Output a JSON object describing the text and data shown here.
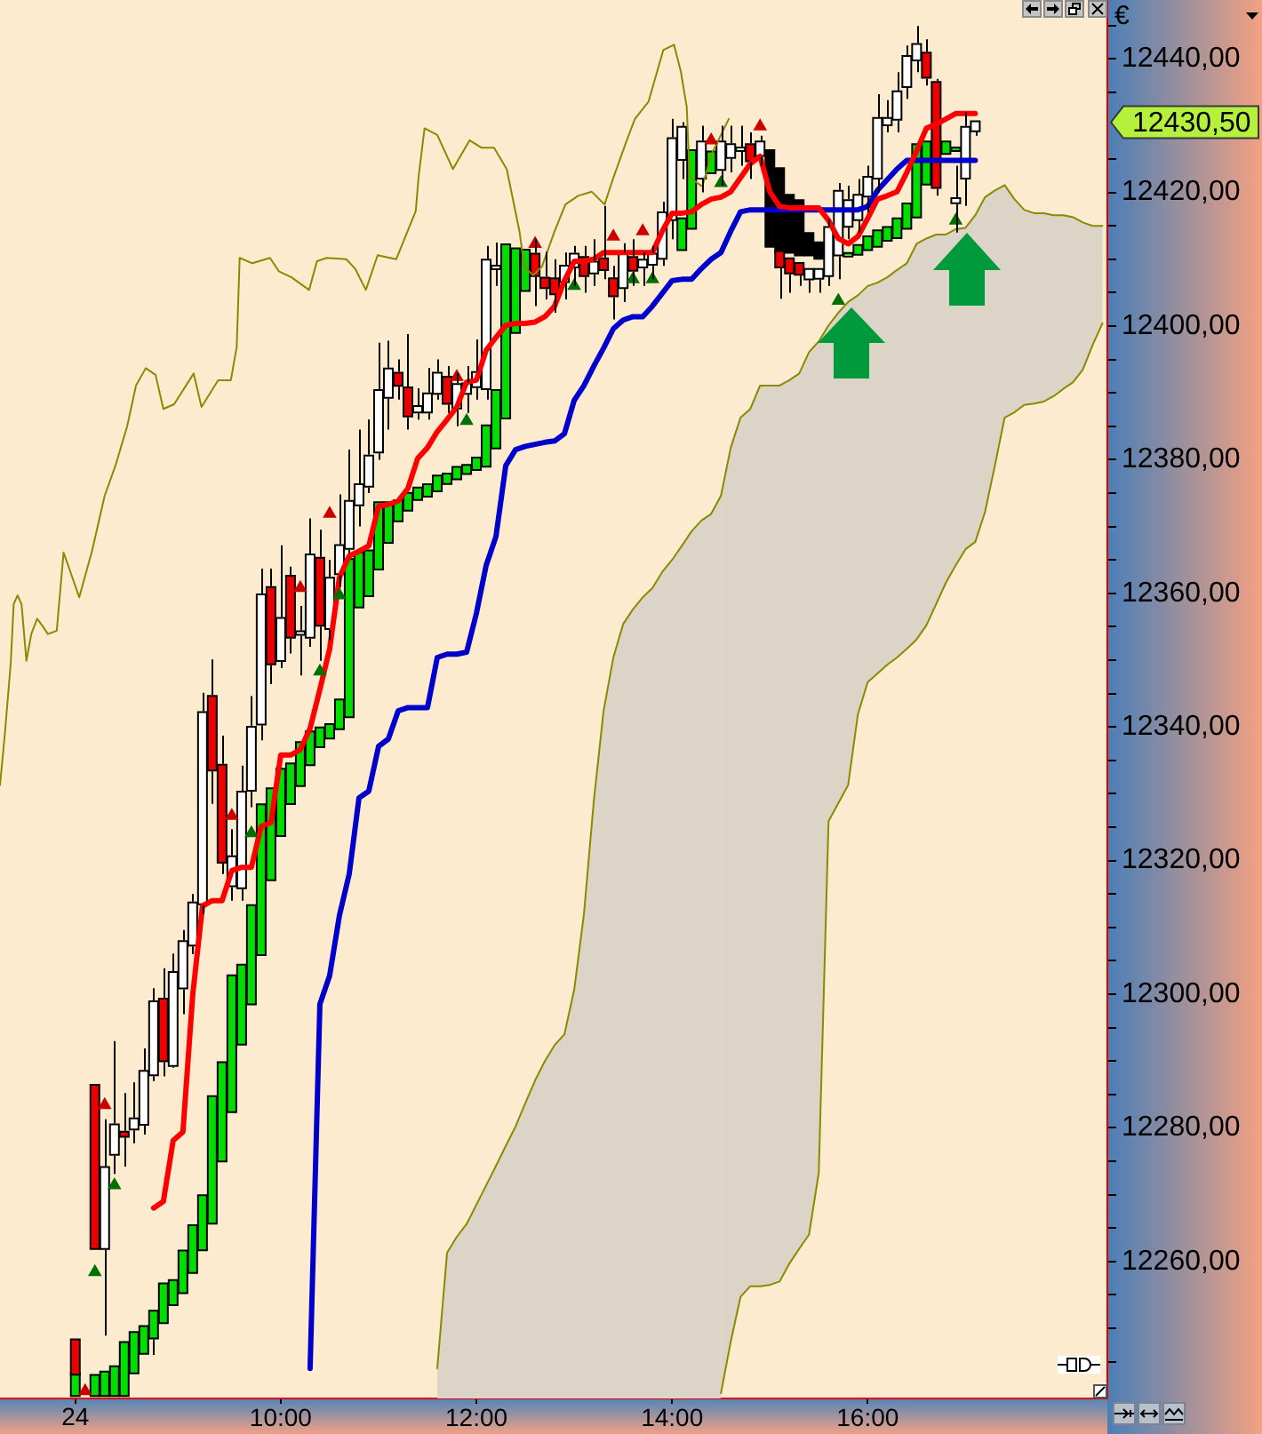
{
  "chart_data": {
    "type": "candlestick",
    "ylabel": "€",
    "x": [
      7.9,
      8,
      8.1,
      8.2,
      8.3,
      8.4,
      8.5,
      8.6,
      8.7,
      8.8,
      8.9,
      9,
      9.1,
      9.2,
      9.3,
      9.4,
      9.5,
      9.6,
      9.7,
      9.8,
      9.9,
      10,
      10.1,
      10.2,
      10.3,
      10.4,
      10.5,
      10.6,
      10.7,
      10.8,
      10.9,
      11,
      11.1,
      11.2,
      11.3,
      11.4,
      11.5,
      11.6,
      11.7,
      11.8,
      11.9,
      12,
      12.1,
      12.2,
      12.3,
      12.4,
      12.5,
      12.6,
      12.7,
      12.8,
      12.9,
      13,
      13.1,
      13.2,
      13.3,
      13.4,
      13.5,
      13.6,
      13.7,
      13.8,
      13.9,
      14,
      14.1,
      14.2,
      14.3,
      14.4,
      14.5,
      14.6,
      14.7,
      14.8,
      14.9,
      15,
      15.1,
      15.2,
      15.3,
      15.4,
      15.5,
      15.6,
      15.7,
      15.8,
      15.9,
      16,
      16.1,
      16.2,
      16.3,
      16.4,
      16.5,
      16.6,
      16.7,
      16.8,
      16.9,
      17,
      17.1
    ],
    "xlim": [
      7.13,
      18.45
    ],
    "xticks": [
      {
        "value": 7.9,
        "label": null
      },
      {
        "value": 10,
        "label": "10:00"
      },
      {
        "value": 12,
        "label": "12:00"
      },
      {
        "value": 14,
        "label": "14:00"
      },
      {
        "value": 16,
        "label": "16:00"
      }
    ],
    "ylim": [
      12239.5,
      12448.8
    ],
    "yticks": [
      {
        "value": 12245,
        "label": null
      },
      {
        "value": 12250,
        "label": null
      },
      {
        "value": 12255,
        "label": null
      },
      {
        "value": 12260,
        "label": "12260,00"
      },
      {
        "value": 12265,
        "label": null
      },
      {
        "value": 12270,
        "label": null
      },
      {
        "value": 12275,
        "label": null
      },
      {
        "value": 12280,
        "label": "12280,00"
      },
      {
        "value": 12285,
        "label": null
      },
      {
        "value": 12290,
        "label": null
      },
      {
        "value": 12295,
        "label": null
      },
      {
        "value": 12300,
        "label": "12300,00"
      },
      {
        "value": 12305,
        "label": null
      },
      {
        "value": 12310,
        "label": null
      },
      {
        "value": 12315,
        "label": null
      },
      {
        "value": 12320,
        "label": "12320,00"
      },
      {
        "value": 12325,
        "label": null
      },
      {
        "value": 12330,
        "label": null
      },
      {
        "value": 12335,
        "label": null
      },
      {
        "value": 12340,
        "label": "12340,00"
      },
      {
        "value": 12345,
        "label": null
      },
      {
        "value": 12350,
        "label": null
      },
      {
        "value": 12355,
        "label": null
      },
      {
        "value": 12360,
        "label": "12360,00"
      },
      {
        "value": 12365,
        "label": null
      },
      {
        "value": 12370,
        "label": null
      },
      {
        "value": 12375,
        "label": null
      },
      {
        "value": 12380,
        "label": "12380,00"
      },
      {
        "value": 12385,
        "label": null
      },
      {
        "value": 12390,
        "label": null
      },
      {
        "value": 12395,
        "label": null
      },
      {
        "value": 12400,
        "label": "12400,00"
      },
      {
        "value": 12405,
        "label": null
      },
      {
        "value": 12410,
        "label": null
      },
      {
        "value": 12415,
        "label": null
      },
      {
        "value": 12420,
        "label": "12420,00"
      },
      {
        "value": 12425,
        "label": null
      },
      {
        "value": 12435,
        "label": null
      },
      {
        "value": 12440,
        "label": "12440,00"
      },
      {
        "value": 12445,
        "label": null
      }
    ],
    "annotations": [
      "24",
      "12430,50"
    ],
    "series": [
      {
        "type": "area",
        "color": "#8a8a00",
        "x": [
          11.6,
          11.7,
          11.8,
          11.9,
          12,
          12.1,
          12.2,
          12.3,
          12.4,
          12.5,
          12.6,
          12.7,
          12.8,
          12.9,
          13,
          13.1,
          13.2,
          13.3,
          13.4,
          13.5,
          13.6,
          13.7,
          13.8,
          13.9,
          14,
          14.1,
          14.2,
          14.3,
          14.4,
          14.5
        ],
        "values": [
          12244.0,
          12261.3,
          12263.7,
          12265.6,
          12268.5,
          12271.4,
          12274.3,
          12277.3,
          12280.2,
          12283.7,
          12287.1,
          12290.0,
          12292.4,
          12294.0,
          12300.7,
          12312.1,
          12328.9,
          12342.4,
          12350.4,
          12355.4,
          12357.6,
          12359.4,
          12360.8,
          12363.2,
          12365.0,
          12367.1,
          12369.3,
          12370.9,
          12371.9,
          12374.6
        ]
      },
      {
        "type": "line",
        "color": "#8a8a00",
        "x": [
          14.5,
          14.6,
          14.7,
          14.8,
          14.9,
          15,
          15.1,
          15.2,
          15.3,
          15.4,
          15.5,
          15.6,
          15.7,
          15.8,
          15.9,
          16,
          16.1,
          16.2,
          16.3,
          16.4,
          16.5,
          16.6,
          16.7,
          16.8,
          16.9,
          17,
          17.1,
          17.2,
          17.3,
          17.4,
          17.5,
          17.6,
          17.7,
          17.8,
          17.9,
          18,
          18.1,
          18.2,
          18.3,
          18.4
        ],
        "values": [
          12374.6,
          12381.8,
          12386.3,
          12387.6,
          12391.1,
          12391.1,
          12391.1,
          12391.9,
          12392.9,
          12396.1,
          12397.7,
          12400.1,
          12402.0,
          12403.6,
          12404.6,
          12406.0,
          12406.5,
          12407.3,
          12408.4,
          12409.4,
          12412.3,
          12413.1,
          12413.7,
          12413.7,
          12414.5,
          12414.7,
          12416.6,
          12419.3,
          12420.3,
          12421.1,
          12419.0,
          12417.4,
          12416.9,
          12416.9,
          12416.6,
          12416.6,
          12416.3,
          12415.5,
          12415.0,
          12415.0
        ],
        "upper": [
          12374.6,
          12381.8,
          12386.3,
          12387.6,
          12391.1,
          12391.1,
          12391.1,
          12391.9,
          12392.9,
          12396.1,
          12397.7,
          12400.1,
          12402.0,
          12403.6,
          12404.6,
          12406.0,
          12406.5,
          12407.3,
          12408.4,
          12409.4,
          12412.3,
          12413.1,
          12413.7,
          12413.7,
          12414.5,
          12414.7,
          12416.6,
          12419.3,
          12420.3,
          12421.1,
          12419.0,
          12417.4,
          12416.9,
          12416.9,
          12416.6,
          12416.6,
          12416.3,
          12415.5,
          12415.0,
          12415.0
        ],
        "lower": [
          12240.3,
          12248.0,
          12254.7,
          12256.3,
          12256.3,
          12256.5,
          12257.0,
          12259.7,
          12261.9,
          12264.0,
          12273.3,
          12325.9,
          12328.6,
          12331.3,
          12341.9,
          12346.7,
          12348.0,
          12349.3,
          12350.4,
          12351.7,
          12353.1,
          12355.2,
          12358.4,
          12361.6,
          12364.2,
          12366.6,
          12367.7,
          12372.2,
          12379.1,
          12386.3,
          12387.1,
          12388.2,
          12388.4,
          12388.7,
          12389.5,
          12390.6,
          12391.6,
          12393.5,
          12397.2,
          12400.4
        ]
      },
      {
        "type": "line",
        "color": "#8a8a00",
        "x": [
          14.5,
          14.6,
          14.7,
          14.8,
          14.9,
          15,
          15.1,
          15.2,
          15.3,
          15.4,
          15.5,
          15.6,
          15.7,
          15.8,
          15.9,
          16,
          16.1,
          16.2,
          16.3,
          16.4,
          16.5,
          16.6,
          16.7,
          16.8,
          16.9,
          17,
          17.1,
          17.2,
          17.3,
          17.4,
          17.5,
          17.6,
          17.7,
          17.8,
          17.9,
          18,
          18.1,
          18.2,
          18.3,
          18.4
        ],
        "values": [
          12240.3,
          12248.0,
          12254.7,
          12256.3,
          12256.3,
          12256.5,
          12257.0,
          12259.7,
          12261.9,
          12264.0,
          12273.3,
          12325.9,
          12328.6,
          12331.3,
          12341.9,
          12346.7,
          12348.0,
          12349.3,
          12350.4,
          12351.7,
          12353.1,
          12355.2,
          12358.4,
          12361.6,
          12364.2,
          12366.6,
          12367.7,
          12372.2,
          12379.1,
          12386.3,
          12387.1,
          12388.2,
          12388.4,
          12388.7,
          12389.5,
          12390.6,
          12391.6,
          12393.5,
          12397.2,
          12400.4
        ]
      },
      {
        "type": "line",
        "color": "#8a8a00",
        "x": [
          7.13,
          7.18,
          7.24,
          7.27,
          7.31,
          7.35,
          7.4,
          7.45,
          7.51,
          7.56,
          7.62,
          7.71,
          7.78,
          7.85,
          7.94,
          8.07,
          8.2,
          8.31,
          8.43,
          8.52,
          8.62,
          8.72,
          8.8,
          8.91,
          9.11,
          9.19,
          9.36,
          9.49,
          9.55,
          9.58,
          9.71,
          9.89,
          9.98,
          10.11,
          10.29,
          10.37,
          10.47,
          10.67,
          10.76,
          10.87,
          10.99,
          11.18,
          11.38,
          11.41,
          11.47,
          11.6,
          11.76,
          11.93,
          12.05,
          12.18,
          12.31,
          12.44,
          12.49,
          12.58,
          12.67,
          12.8,
          12.91,
          13.04,
          13.18,
          13.31,
          13.4,
          13.53,
          13.62,
          13.76,
          13.91,
          14.02,
          14.09,
          14.15,
          14.18,
          14.31,
          14.4,
          14.58
        ],
        "values": [
          12331.3,
          12339.0,
          12349.6,
          12358.4,
          12359.7,
          12358.4,
          12349.9,
          12353.9,
          12356.2,
          12355.2,
          12353.9,
          12354.4,
          12366.1,
          12363.2,
          12359.4,
          12366.3,
          12374.6,
          12379.1,
          12385.0,
          12391.1,
          12393.7,
          12392.7,
          12387.6,
          12388.3,
          12392.9,
          12387.9,
          12391.9,
          12391.9,
          12396.9,
          12410.2,
          12409.4,
          12410.2,
          12408.2,
          12407.3,
          12405.4,
          12409.7,
          12410.2,
          12410.0,
          12408.6,
          12405.4,
          12410.6,
          12410.0,
          12417.2,
          12422.5,
          12429.6,
          12428.6,
          12423.5,
          12427.8,
          12426.7,
          12426.7,
          12423.5,
          12414.2,
          12408.9,
          12407.6,
          12408.9,
          12414.2,
          12418.2,
          12419.5,
          12420.1,
          12418.2,
          12422.2,
          12427.5,
          12431.0,
          12433.6,
          12441.3,
          12442.1,
          12438.1,
          12432.8,
          12422.2,
          12420.9,
          12425.6,
          12431.0
        ]
      },
      {
        "type": "line",
        "color": "#0000cc",
        "values": [
          null,
          null,
          null,
          null,
          null,
          null,
          null,
          null,
          null,
          null,
          null,
          null,
          null,
          null,
          null,
          null,
          null,
          null,
          null,
          null,
          null,
          null,
          null,
          null,
          12244.0,
          12298.5,
          12302.8,
          12311.8,
          12318.0,
          12329.4,
          12330.4,
          12337.1,
          12338.2,
          12342.4,
          12342.9,
          12342.9,
          12342.9,
          12350.4,
          12350.9,
          12350.9,
          12351.2,
          12357.0,
          12364.2,
          12368.5,
          12379.1,
          12381.5,
          12382.0,
          12382.3,
          12382.6,
          12382.8,
          12383.9,
          12388.9,
          12391.1,
          12394.0,
          12396.7,
          12399.6,
          12400.9,
          12401.4,
          12401.4,
          12403.0,
          12404.9,
          12406.8,
          12407.0,
          12407.0,
          12408.6,
          12410.0,
          12411.0,
          12414.2,
          12417.1,
          12417.4,
          12417.4,
          12417.4,
          12417.4,
          12417.4,
          12417.4,
          12417.4,
          12417.4,
          12417.4,
          12417.4,
          12417.4,
          12417.4,
          12417.9,
          12420.3,
          12421.9,
          12423.5,
          12424.8,
          12424.8,
          12424.8,
          12424.8,
          12424.8,
          12424.8,
          12424.8,
          12424.8
        ]
      },
      {
        "type": "line",
        "color": "#ff0000",
        "values": [
          null,
          null,
          null,
          null,
          null,
          null,
          null,
          null,
          12268.0,
          12269.0,
          12278.1,
          12279.4,
          12299.9,
          12313.2,
          12314.0,
          12314.0,
          12318.5,
          12319.0,
          12319.0,
          12325.1,
          12325.7,
          12335.8,
          12335.8,
          12336.6,
          12339.8,
          12345.6,
          12351.7,
          12362.4,
          12365.6,
          12366.3,
          12367.1,
          12373.0,
          12373.3,
          12373.8,
          12375.7,
          12380.2,
          12381.8,
          12384.2,
          12386.0,
          12387.9,
          12391.6,
          12391.9,
          12396.4,
          12398.3,
          12400.1,
          12400.4,
          12400.4,
          12400.6,
          12401.4,
          12403.0,
          12406.8,
          12409.7,
          12409.7,
          12410.0,
          12411.0,
          12411.0,
          12411.0,
          12411.0,
          12411.0,
          12411.0,
          12414.2,
          12416.9,
          12416.9,
          12417.1,
          12418.2,
          12419.0,
          12419.3,
          12420.1,
          12422.2,
          12424.3,
          12425.4,
          12420.1,
          12417.9,
          12417.7,
          12417.7,
          12417.7,
          12417.7,
          12415.8,
          12413.1,
          12412.3,
          12413.4,
          12416.1,
          12419.0,
          12419.5,
          12420.1,
          12423.0,
          12426.2,
          12429.6,
          12430.2,
          12431.0,
          12431.8,
          12431.8,
          12431.8
        ]
      },
      {
        "type": "scatter",
        "color": "#007000",
        "marker": "triangle",
        "x": [
          8.1,
          8.3,
          9.7,
          10.4,
          10.6,
          11.9,
          13,
          13.6,
          13.8,
          14.5,
          15.7,
          16.9
        ],
        "values": [
          12258.4,
          12271.4,
          12324.1,
          12348.3,
          12359.7,
          12385.8,
          12406.0,
          12407.0,
          12407.0,
          12421.4,
          12403.8,
          12415.8
        ]
      },
      {
        "type": "scatter",
        "color": "#cc0000",
        "marker": "triangle",
        "x": [
          8,
          8.2,
          9.5,
          10.2,
          10.5,
          11.8,
          12.6,
          13.4,
          13.7,
          14.4,
          14.9
        ],
        "values": [
          12240.6,
          12283.4,
          12326.7,
          12360.8,
          12371.9,
          12392.4,
          12412.3,
          12413.4,
          12414.2,
          12427.8,
          12429.9
        ]
      },
      {
        "ohlc": [
          [
            12240,
            12243.2,
            12240,
            12243.2
          ],
          null,
          [
            12240,
            12242.9,
            12240,
            12242.9
          ],
          [
            12240,
            12243.4,
            12240,
            12243.4
          ],
          [
            12240,
            12244.2,
            12240,
            12244.2
          ],
          [
            12240,
            12247.8,
            12240,
            12247.8
          ],
          [
            12243.4,
            12249.3,
            12243.4,
            12249.3
          ],
          [
            12246.3,
            12250.2,
            12246.3,
            12250.2
          ],
          [
            12248.6,
            12252.5,
            12246.0,
            12252.5
          ],
          [
            12250.9,
            12256.6,
            12250.9,
            12256.6
          ],
          [
            12253.6,
            12257.1,
            12253.6,
            12257.1
          ],
          [
            12255.4,
            12261.5,
            12255.4,
            12261.5
          ],
          [
            12258.4,
            12265.3,
            12258.4,
            12265.3
          ],
          [
            12261.8,
            12269.8,
            12261.8,
            12269.8
          ],
          [
            12265.8,
            12284.6,
            12265.8,
            12284.6
          ],
          [
            12275.1,
            12289.7,
            12275.1,
            12289.7
          ],
          [
            12282.5,
            12302.7,
            12282.5,
            12302.7
          ],
          [
            12292.6,
            12304.3,
            12292.6,
            12304.3
          ],
          [
            12298.6,
            12313.2,
            12298.6,
            12313.2
          ],
          [
            12306.0,
            12328.3,
            12306.0,
            12328.3
          ],
          [
            12317.2,
            12330.7,
            12317.2,
            12330.7
          ],
          [
            12323.8,
            12333.6,
            12323.8,
            12333.6
          ],
          [
            12328.6,
            12334.4,
            12328.6,
            12334.4
          ],
          [
            12331.3,
            12337.6,
            12331.3,
            12337.6
          ],
          [
            12334.4,
            12339.2,
            12334.4,
            12339.2
          ],
          [
            12337.1,
            12339.8,
            12337.1,
            12339.8
          ],
          [
            12338.4,
            12340.3,
            12338.4,
            12340.3
          ],
          [
            12339.8,
            12344.0,
            12339.8,
            12344.0
          ],
          [
            12341.6,
            12365.0,
            12341.6,
            12365.0
          ],
          [
            12358.0,
            12366.0,
            12358.0,
            12366.0
          ],
          [
            12359.7,
            12366.3,
            12359.7,
            12366.3
          ],
          [
            12363.7,
            12373.5,
            12363.7,
            12373.5
          ],
          [
            12367.7,
            12373.5,
            12367.7,
            12373.5
          ],
          [
            12370.9,
            12373.8,
            12370.9,
            12373.8
          ],
          [
            12372.5,
            12374.9,
            12372.5,
            12374.9
          ],
          [
            12374.1,
            12375.7,
            12374.1,
            12375.7
          ],
          [
            12374.6,
            12376.2,
            12374.6,
            12376.2
          ],
          [
            12375.4,
            12377.5,
            12375.4,
            12377.5
          ],
          [
            12376.5,
            12377.8,
            12376.5,
            12377.8
          ],
          [
            12377.2,
            12378.8,
            12377.2,
            12378.8
          ],
          [
            12378.0,
            12379.1,
            12378.0,
            12379.1
          ],
          [
            12378.6,
            12380.2,
            12378.6,
            12380.2
          ],
          [
            12379.1,
            12385.0,
            12379.1,
            12385.0
          ],
          [
            12381.8,
            12390.3,
            12381.8,
            12390.3
          ],
          [
            12386.3,
            12412.1,
            12386.3,
            12412.1
          ],
          [
            12399.1,
            12411.5,
            12399.1,
            12411.5
          ],
          [
            12405.4,
            12411.3,
            12405.4,
            12411.3
          ],
          null,
          null,
          null,
          null,
          null,
          null,
          null,
          null,
          null,
          null,
          null,
          null,
          null,
          null,
          null,
          [
            12411.5,
            12416.0,
            12411.5,
            12416.0
          ],
          [
            12414.7,
            12426.2,
            12414.7,
            12426.2
          ],
          null,
          [
            12423.0,
            12426.0,
            12423.0,
            12426.0
          ],
          null,
          null,
          null,
          null,
          null,
          [
            12426.2,
            12426.2,
            12412.0,
            12412.0
          ],
          [
            12423.5,
            12423.5,
            12411.1,
            12411.1
          ],
          [
            12419.5,
            12419.5,
            12411.1,
            12411.1
          ],
          [
            12418.7,
            12418.7,
            12410.7,
            12410.7
          ],
          [
            12413.8,
            12413.8,
            12410.7,
            12410.7
          ],
          [
            12412.4,
            12412.4,
            12410.2,
            12410.2
          ],
          null,
          null,
          [
            12410.7,
            12410.8,
            12410.7,
            12410.8
          ],
          [
            12410.8,
            12412.0,
            12410.8,
            12412.0
          ],
          [
            12411.5,
            12413.3,
            12411.5,
            12413.3
          ],
          [
            12412.0,
            12414.2,
            12412.0,
            12414.2
          ],
          [
            12412.9,
            12414.7,
            12412.9,
            12414.7
          ],
          [
            12413.3,
            12416.0,
            12413.3,
            12416.0
          ],
          [
            12414.7,
            12418.2,
            12414.7,
            12418.2
          ],
          [
            12416.4,
            12427.1,
            12416.4,
            12427.1
          ],
          [
            12421.3,
            12427.5,
            12421.3,
            12427.5
          ],
          null,
          [
            12425.9,
            12427.5,
            12425.9,
            12427.5
          ],
          [
            12426.4,
            12426.6,
            12426.4,
            12426.6
          ],
          null,
          null
        ],
        "colors": [
          "#00dd00",
          null,
          "#00dd00",
          "#00dd00",
          "#00dd00",
          "#00dd00",
          "#00dd00",
          "#00dd00",
          "#00dd00",
          "#00dd00",
          "#00dd00",
          "#00dd00",
          "#00dd00",
          "#00dd00",
          "#00dd00",
          "#00dd00",
          "#00dd00",
          "#00dd00",
          "#00dd00",
          "#00dd00",
          "#00dd00",
          "#00dd00",
          "#00dd00",
          "#00dd00",
          "#00dd00",
          "#00dd00",
          "#00dd00",
          "#00dd00",
          "#00dd00",
          "#00dd00",
          "#00dd00",
          "#00dd00",
          "#00dd00",
          "#00dd00",
          "#00dd00",
          "#00dd00",
          "#00dd00",
          "#00dd00",
          "#00dd00",
          "#00dd00",
          "#00dd00",
          "#00dd00",
          "#00dd00",
          "#00dd00",
          "#00dd00",
          "#00dd00",
          "#00dd00",
          null,
          null,
          null,
          null,
          null,
          null,
          null,
          null,
          null,
          null,
          null,
          null,
          null,
          null,
          null,
          "#00dd00",
          "#00dd00",
          null,
          "#00dd00",
          null,
          null,
          null,
          null,
          null,
          "#000000",
          "#000000",
          "#000000",
          "#000000",
          "#000000",
          "#000000",
          null,
          null,
          "#00dd00",
          "#00dd00",
          "#00dd00",
          "#00dd00",
          "#00dd00",
          "#00dd00",
          "#00dd00",
          "#00dd00",
          "#00dd00",
          null,
          "#00dd00",
          "#00dd00",
          null,
          null
        ]
      },
      {
        "ohlc": [
          [
            12248.2,
            12248.2,
            12243.2,
            12243.2
          ],
          null,
          [
            12286.3,
            12286.3,
            12262.0,
            12262.0
          ],
          [
            12262.0,
            12281.3,
            12248.9,
            12274.0
          ],
          [
            12276.1,
            12293.0,
            12273.1,
            12280.4
          ],
          [
            12279.3,
            12285.2,
            12274.2,
            12278.8
          ],
          [
            12279.9,
            12286.8,
            12277.7,
            12281.3
          ],
          [
            12280.6,
            12291.9,
            12279.0,
            12288.4
          ],
          [
            12288.0,
            12300.9,
            12287.0,
            12298.8
          ],
          [
            12299.2,
            12303.9,
            12287.7,
            12290.1
          ],
          [
            12289.4,
            12306.1,
            12289.0,
            12303.2
          ],
          [
            12301.0,
            12309.6,
            12297.0,
            12307.8
          ],
          [
            12307.4,
            12315.0,
            12306.0,
            12313.6
          ],
          [
            12313.6,
            12345.1,
            12312.0,
            12342.1
          ],
          [
            12344.5,
            12350.1,
            12328.5,
            12333.6
          ],
          [
            12334.2,
            12338.7,
            12318.0,
            12319.8
          ],
          [
            12316.3,
            12324.7,
            12314.0,
            12320.5
          ],
          [
            12316.0,
            12334.2,
            12314.0,
            12330.2
          ],
          [
            12330.6,
            12344.6,
            12328.0,
            12339.9
          ],
          [
            12340.5,
            12363.7,
            12338.0,
            12359.7
          ],
          [
            12360.8,
            12363.7,
            12346.4,
            12349.5
          ],
          [
            12350.0,
            12367.2,
            12348.8,
            12356.2
          ],
          [
            12362.5,
            12364.0,
            12351.0,
            12353.5
          ],
          [
            12354.0,
            12358.1,
            12347.7,
            12354.2
          ],
          [
            12353.5,
            12371.2,
            12352.0,
            12365.7
          ],
          [
            12365.2,
            12369.5,
            12349.9,
            12355.3
          ],
          [
            12354.8,
            12365.0,
            12353.0,
            12362.2
          ],
          [
            12363.0,
            12374.8,
            12361.0,
            12367.1
          ],
          [
            12366.8,
            12381.5,
            12366.0,
            12373.7
          ],
          [
            12373.3,
            12384.5,
            12370.0,
            12376.2
          ],
          [
            12376.1,
            12386.0,
            12375.0,
            12380.5
          ],
          [
            12381.2,
            12397.5,
            12380.0,
            12390.3
          ],
          [
            12389.4,
            12397.8,
            12384.5,
            12393.5
          ],
          [
            12392.9,
            12395.0,
            12389.0,
            12391.2
          ],
          [
            12390.7,
            12398.8,
            12384.5,
            12386.6
          ],
          [
            12387.2,
            12390.7,
            12386.0,
            12387.9
          ],
          [
            12387.2,
            12393.7,
            12386.0,
            12389.8
          ],
          [
            12390.0,
            12395.0,
            12389.0,
            12392.9
          ],
          [
            12392.3,
            12394.0,
            12387.0,
            12388.5
          ],
          [
            12387.8,
            12393.0,
            12385.0,
            12391.2
          ],
          [
            12390.0,
            12394.0,
            12387.0,
            12391.3
          ],
          [
            12391.0,
            12398.0,
            12389.0,
            12393.0
          ],
          [
            12390.7,
            12412.0,
            12389.0,
            12409.8
          ],
          [
            12408.7,
            12412.5,
            12406.0,
            12408.9
          ],
          null,
          null,
          null,
          [
            12410.7,
            12413.0,
            12403.0,
            12407.6
          ],
          [
            12407.1,
            12411.1,
            12404.0,
            12405.8
          ],
          [
            12407.0,
            12410.0,
            12402.0,
            12404.9
          ],
          [
            12406.7,
            12411.0,
            12404.0,
            12408.9
          ],
          [
            12408.9,
            12412.0,
            12406.0,
            12410.7
          ],
          [
            12410.2,
            12412.0,
            12405.0,
            12407.6
          ],
          [
            12408.0,
            12413.0,
            12406.0,
            12409.5
          ],
          [
            12410.0,
            12418.0,
            12407.0,
            12408.5
          ],
          [
            12407.0,
            12409.0,
            12401.0,
            12404.6
          ],
          [
            12405.8,
            12412.4,
            12403.6,
            12410.7
          ],
          [
            12410.2,
            12413.0,
            12406.0,
            12408.4
          ],
          [
            12408.9,
            12411.0,
            12406.0,
            12409.8
          ],
          [
            12409.3,
            12412.0,
            12407.0,
            12410.7
          ],
          [
            12410.2,
            12418.6,
            12409.0,
            12416.9
          ],
          [
            12416.0,
            12431.0,
            12413.0,
            12428.0
          ],
          [
            12425.0,
            12430.5,
            12422.0,
            12429.7
          ],
          null,
          [
            12422.2,
            12430.0,
            12420.0,
            12427.5
          ],
          null,
          [
            12423.5,
            12430.0,
            12421.0,
            12427.5
          ],
          [
            12425.3,
            12430.0,
            12423.0,
            12427.1
          ],
          [
            12426.5,
            12430.0,
            12424.0,
            12426.6
          ],
          [
            12427.1,
            12429.0,
            12422.0,
            12424.8
          ],
          [
            12425.6,
            12428.5,
            12424.0,
            12427.5
          ],
          null,
          [
            12411.1,
            12411.1,
            12404.1,
            12408.9
          ],
          [
            12410.0,
            12410.0,
            12405.0,
            12408.0
          ],
          [
            12409.3,
            12409.3,
            12406.0,
            12407.8
          ],
          [
            12407.1,
            12408.4,
            12405.0,
            12408.4
          ],
          [
            12407.2,
            12408.4,
            12405.0,
            12408.4
          ],
          [
            12407.6,
            12416.0,
            12406.0,
            12414.7
          ],
          [
            12410.7,
            12421.4,
            12407.0,
            12420.1
          ],
          [
            12415.0,
            12421.0,
            12413.0,
            12418.7
          ],
          [
            12416.0,
            12422.0,
            12414.0,
            12419.5
          ],
          [
            12419.5,
            12424.0,
            12417.0,
            12422.2
          ],
          [
            12422.2,
            12434.7,
            12420.0,
            12431.0
          ],
          [
            12430.2,
            12433.8,
            12429.0,
            12431.0
          ],
          [
            12431.0,
            12438.0,
            12429.0,
            12435.0
          ],
          [
            12435.9,
            12442.0,
            12434.0,
            12440.3
          ],
          [
            12439.9,
            12444.9,
            12438.0,
            12442.1
          ],
          [
            12440.8,
            12442.9,
            12436.0,
            12437.3
          ],
          [
            12436.4,
            12437.0,
            12419.5,
            12420.8
          ],
          null,
          [
            12418.5,
            12424.0,
            12414.0,
            12419.0
          ],
          [
            12422.2,
            12432.0,
            12418.0,
            12429.7
          ],
          [
            12429.3,
            12430.6,
            12428.5,
            12430.5
          ]
        ],
        "colors": [
          "#ee0000",
          null,
          "#ee0000",
          "#ffffff",
          "#ffffff",
          "#ee0000",
          "#ffffff",
          "#ffffff",
          "#ffffff",
          "#ee0000",
          "#ffffff",
          "#ffffff",
          "#ffffff",
          "#ffffff",
          "#ee0000",
          "#ee0000",
          "#ffffff",
          "#ffffff",
          "#ffffff",
          "#ffffff",
          "#ee0000",
          "#ffffff",
          "#ee0000",
          "#ffffff",
          "#ffffff",
          "#ee0000",
          "#ffffff",
          "#ffffff",
          "#ffffff",
          "#ffffff",
          "#ffffff",
          "#ffffff",
          "#ffffff",
          "#ee0000",
          "#ee0000",
          "#ffffff",
          "#ffffff",
          "#ffffff",
          "#ee0000",
          "#ffffff",
          "#ffffff",
          "#ffffff",
          "#ffffff",
          "#ffffff",
          null,
          null,
          null,
          "#ee0000",
          "#ee0000",
          "#ee0000",
          "#ffffff",
          "#ffffff",
          "#ee0000",
          "#ffffff",
          "#ee0000",
          "#ee0000",
          "#ffffff",
          "#ee0000",
          "#ffffff",
          "#ffffff",
          "#ffffff",
          "#ffffff",
          "#ffffff",
          null,
          "#ffffff",
          null,
          "#ffffff",
          "#ffffff",
          "#ffffff",
          "#ee0000",
          "#ffffff",
          null,
          "#ee0000",
          "#ee0000",
          "#ee0000",
          "#ffffff",
          "#ffffff",
          "#ffffff",
          "#ffffff",
          "#ffffff",
          "#ffffff",
          "#ffffff",
          "#ffffff",
          "#ffffff",
          "#ffffff",
          "#ffffff",
          "#ffffff",
          "#ee0000",
          "#ee0000",
          null,
          "#ffffff",
          "#ffffff",
          "#ffffff"
        ]
      }
    ]
  }
}
